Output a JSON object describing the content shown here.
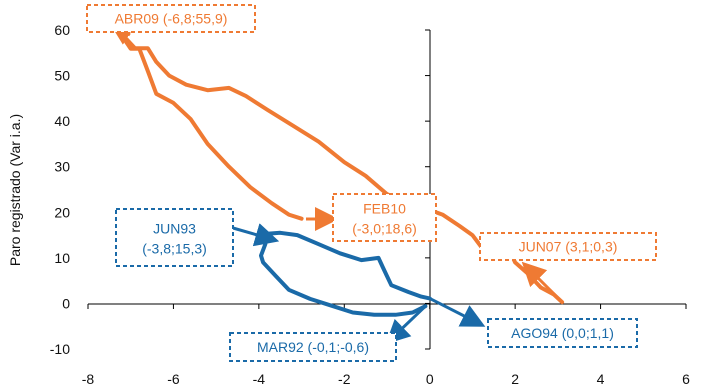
{
  "chart_data": {
    "type": "line",
    "title": "",
    "xlabel": "",
    "ylabel": "Paro registrado (Var i.a.)",
    "xlim": [
      -8,
      6
    ],
    "ylim": [
      -10,
      60
    ],
    "xticks": [
      -8,
      -6,
      -4,
      -2,
      0,
      2,
      4,
      6
    ],
    "yticks": [
      -10,
      0,
      10,
      20,
      30,
      40,
      50,
      60
    ],
    "xtick_labels": [
      "-8",
      "-6",
      "-4",
      "-2",
      "0",
      "2",
      "4",
      "6"
    ],
    "ytick_labels": [
      "-10",
      "0",
      "10",
      "20",
      "30",
      "40",
      "50",
      "60"
    ],
    "grid": false,
    "series": [
      {
        "color": "#ef7a33",
        "points": [
          [
            3.1,
            0.3
          ],
          [
            2.9,
            2.0
          ],
          [
            2.6,
            3.5
          ],
          [
            2.3,
            6.5
          ],
          [
            2.0,
            9.0
          ],
          [
            1.9,
            11.0
          ],
          [
            1.6,
            11.5
          ],
          [
            1.3,
            11.5
          ],
          [
            1.2,
            12.5
          ],
          [
            1.0,
            15.0
          ],
          [
            0.7,
            17.0
          ],
          [
            0.3,
            19.5
          ],
          [
            0.0,
            20.5
          ],
          [
            -0.5,
            22.0
          ],
          [
            -1.0,
            24.0
          ],
          [
            -1.5,
            28.0
          ],
          [
            -2.0,
            31.0
          ],
          [
            -2.6,
            35.5
          ],
          [
            -3.2,
            39.0
          ],
          [
            -3.8,
            42.5
          ],
          [
            -4.3,
            45.5
          ],
          [
            -4.7,
            47.3
          ],
          [
            -5.2,
            46.8
          ],
          [
            -5.7,
            48.0
          ],
          [
            -6.1,
            50.0
          ],
          [
            -6.4,
            53.0
          ],
          [
            -6.6,
            56.0
          ],
          [
            -6.9,
            56.0
          ],
          [
            -7.2,
            59.0
          ],
          [
            -7.3,
            60.0
          ],
          [
            -7.0,
            55.9
          ],
          [
            -6.8,
            55.9
          ],
          [
            -6.6,
            51.0
          ],
          [
            -6.4,
            46.0
          ],
          [
            -6.0,
            44.0
          ],
          [
            -5.6,
            40.5
          ],
          [
            -5.2,
            35.0
          ],
          [
            -4.7,
            30.0
          ],
          [
            -4.2,
            25.5
          ],
          [
            -3.7,
            22.0
          ],
          [
            -3.3,
            19.5
          ],
          [
            -3.0,
            18.6
          ]
        ]
      },
      {
        "color": "#1a6aa8",
        "points": [
          [
            -0.1,
            -0.6
          ],
          [
            -0.4,
            -2.0
          ],
          [
            -0.8,
            -2.5
          ],
          [
            -1.3,
            -2.5
          ],
          [
            -1.8,
            -2.0
          ],
          [
            -2.3,
            -0.5
          ],
          [
            -2.8,
            1.0
          ],
          [
            -3.3,
            3.0
          ],
          [
            -3.6,
            6.0
          ],
          [
            -3.9,
            9.0
          ],
          [
            -3.95,
            10.5
          ],
          [
            -3.85,
            13.0
          ],
          [
            -3.8,
            15.3
          ],
          [
            -3.5,
            15.5
          ],
          [
            -3.1,
            15.0
          ],
          [
            -2.6,
            13.0
          ],
          [
            -2.1,
            11.0
          ],
          [
            -1.6,
            9.5
          ],
          [
            -1.2,
            10.0
          ],
          [
            -1.1,
            8.0
          ],
          [
            -1.0,
            6.0
          ],
          [
            -0.9,
            4.0
          ],
          [
            -0.5,
            2.5
          ],
          [
            -0.2,
            1.5
          ],
          [
            0.0,
            1.1
          ]
        ]
      }
    ],
    "annotations": [
      {
        "text": "ABR09 (-6,8;55,9)",
        "color": "#ef7a33",
        "point": [
          -6.8,
          55.9
        ]
      },
      {
        "text": "FEB10",
        "text2": "(-3,0;18,6)",
        "color": "#ef7a33",
        "point": [
          -3.0,
          18.6
        ]
      },
      {
        "text": "JUN07  (3,1;0,3)",
        "color": "#ef7a33",
        "point": [
          3.1,
          0.3
        ]
      },
      {
        "text": "JUN93",
        "text2": "(-3,8;15,3)",
        "color": "#1a6aa8",
        "point": [
          -3.8,
          15.3
        ]
      },
      {
        "text": "MAR92  (-0,1;-0,6)",
        "color": "#1a6aa8",
        "point": [
          -0.1,
          -0.6
        ]
      },
      {
        "text": "AGO94 (0,0;1,1)",
        "color": "#1a6aa8",
        "point": [
          0.0,
          1.1
        ]
      }
    ]
  }
}
